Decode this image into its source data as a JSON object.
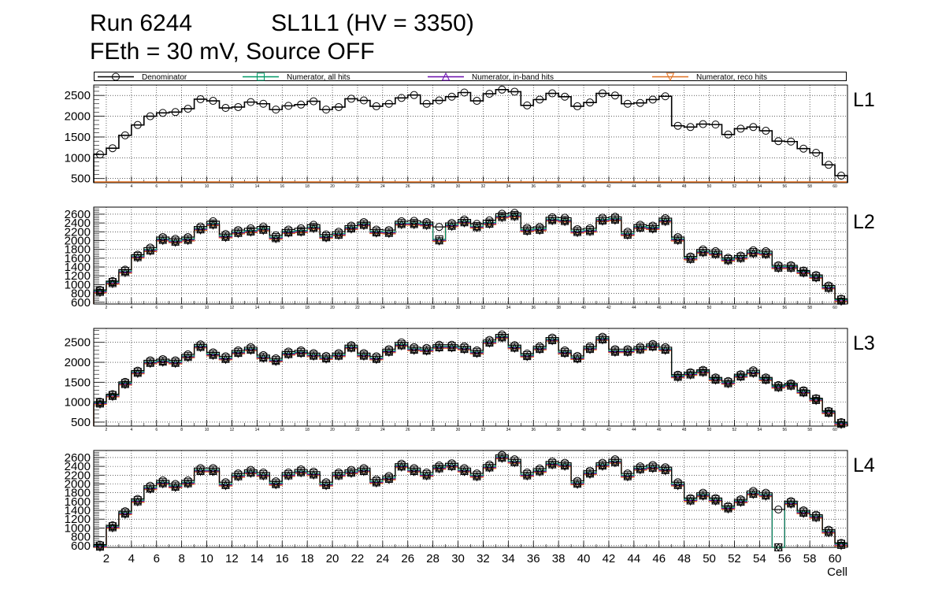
{
  "header": {
    "run": "Run 6244",
    "sl": "SL1L1 (HV = 3350)",
    "line2": "FEth = 30 mV, Source OFF"
  },
  "legend": [
    {
      "name": "Denominator",
      "color": "#000000",
      "marker": "circle"
    },
    {
      "name": "Numerator, all hits",
      "color": "#009966",
      "marker": "square"
    },
    {
      "name": "Numerator, in-band hits",
      "color": "#6a0dad",
      "marker": "triangle-up"
    },
    {
      "name": "Numerator, reco hits",
      "color": "#e07020",
      "marker": "triangle-down"
    }
  ],
  "chart_data": {
    "type": "histogram",
    "xlabel": "Cell",
    "x_range": [
      1,
      61
    ],
    "x_ticks_major": [
      2,
      4,
      6,
      8,
      10,
      12,
      14,
      16,
      18,
      20,
      22,
      24,
      26,
      28,
      30,
      32,
      34,
      36,
      38,
      40,
      42,
      44,
      46,
      48,
      50,
      52,
      54,
      56,
      58,
      60
    ],
    "panels": [
      {
        "label": "L1",
        "ylim": [
          400,
          2750
        ],
        "yticks": [
          500,
          1000,
          1500,
          2000,
          2500
        ],
        "denominator": [
          1080,
          1230,
          1540,
          1790,
          2000,
          2080,
          2100,
          2180,
          2410,
          2370,
          2200,
          2220,
          2340,
          2300,
          2160,
          2250,
          2280,
          2360,
          2160,
          2220,
          2420,
          2380,
          2240,
          2300,
          2440,
          2510,
          2300,
          2380,
          2470,
          2570,
          2370,
          2540,
          2640,
          2590,
          2260,
          2400,
          2550,
          2470,
          2240,
          2330,
          2550,
          2500,
          2300,
          2320,
          2400,
          2480,
          1770,
          1740,
          1810,
          1800,
          1560,
          1700,
          1740,
          1650,
          1400,
          1390,
          1220,
          1120,
          830,
          570
        ],
        "numerators_near_zero": true
      },
      {
        "label": "L2",
        "ylim": [
          560,
          2760
        ],
        "yticks": [
          600,
          800,
          1000,
          1200,
          1400,
          1600,
          1800,
          2000,
          2200,
          2400,
          2600
        ],
        "denominator": [
          880,
          1080,
          1340,
          1680,
          1840,
          2080,
          2040,
          2080,
          2320,
          2440,
          2150,
          2240,
          2280,
          2320,
          2120,
          2250,
          2280,
          2360,
          2140,
          2200,
          2340,
          2420,
          2250,
          2240,
          2440,
          2450,
          2420,
          2310,
          2400,
          2480,
          2380,
          2460,
          2610,
          2630,
          2290,
          2310,
          2530,
          2520,
          2260,
          2280,
          2520,
          2540,
          2200,
          2360,
          2340,
          2510,
          2080,
          1640,
          1800,
          1760,
          1610,
          1660,
          1780,
          1760,
          1440,
          1440,
          1320,
          1220,
          980,
          680
        ],
        "numerator_all": [
          860,
          1060,
          1310,
          1650,
          1800,
          2040,
          2000,
          2040,
          2280,
          2390,
          2110,
          2200,
          2230,
          2270,
          2080,
          2210,
          2230,
          2310,
          2100,
          2160,
          2300,
          2380,
          2210,
          2200,
          2400,
          2400,
          2380,
          2030,
          2360,
          2440,
          2330,
          2410,
          2560,
          2580,
          2250,
          2270,
          2490,
          2470,
          2220,
          2240,
          2480,
          2500,
          2160,
          2320,
          2300,
          2470,
          2040,
          1610,
          1760,
          1720,
          1580,
          1630,
          1740,
          1720,
          1410,
          1410,
          1300,
          1190,
          950,
          660
        ]
      },
      {
        "label": "L3",
        "ylim": [
          400,
          2850
        ],
        "yticks": [
          500,
          1000,
          1500,
          2000,
          2500
        ],
        "denominator": [
          1010,
          1200,
          1510,
          1790,
          2050,
          2080,
          2050,
          2200,
          2450,
          2250,
          2150,
          2300,
          2380,
          2180,
          2100,
          2270,
          2300,
          2230,
          2160,
          2230,
          2430,
          2230,
          2150,
          2330,
          2500,
          2380,
          2360,
          2440,
          2440,
          2400,
          2300,
          2560,
          2700,
          2430,
          2220,
          2400,
          2620,
          2300,
          2160,
          2400,
          2640,
          2330,
          2330,
          2390,
          2460,
          2380,
          1690,
          1750,
          1810,
          1620,
          1530,
          1700,
          1800,
          1620,
          1430,
          1470,
          1300,
          1100,
          780,
          500
        ],
        "numerator_all": [
          990,
          1180,
          1480,
          1760,
          2010,
          2040,
          2010,
          2160,
          2410,
          2210,
          2110,
          2260,
          2340,
          2140,
          2060,
          2230,
          2260,
          2190,
          2120,
          2190,
          2390,
          2190,
          2110,
          2290,
          2450,
          2340,
          2320,
          2400,
          2400,
          2360,
          2260,
          2520,
          2650,
          2390,
          2180,
          2360,
          2580,
          2260,
          2120,
          2360,
          2600,
          2290,
          2290,
          2350,
          2420,
          2340,
          1660,
          1720,
          1780,
          1590,
          1500,
          1670,
          1760,
          1590,
          1400,
          1440,
          1270,
          1080,
          760,
          480
        ]
      },
      {
        "label": "L4",
        "ylim": [
          560,
          2760
        ],
        "yticks": [
          600,
          800,
          1000,
          1200,
          1400,
          1600,
          1800,
          2000,
          2200,
          2400,
          2600
        ],
        "denominator": [
          620,
          1060,
          1380,
          1660,
          1960,
          2080,
          2000,
          2080,
          2360,
          2360,
          2040,
          2240,
          2320,
          2260,
          2060,
          2260,
          2330,
          2280,
          2040,
          2260,
          2320,
          2360,
          2100,
          2180,
          2460,
          2360,
          2260,
          2420,
          2470,
          2360,
          2240,
          2440,
          2660,
          2560,
          2260,
          2350,
          2510,
          2480,
          2070,
          2300,
          2480,
          2560,
          2240,
          2400,
          2430,
          2380,
          2040,
          1680,
          1800,
          1680,
          1500,
          1650,
          1840,
          1800,
          1420,
          1610,
          1400,
          1300,
          960,
          660
        ],
        "numerator_all": [
          600,
          1040,
          1350,
          1630,
          1920,
          2040,
          1960,
          2040,
          2320,
          2320,
          2000,
          2200,
          2280,
          2220,
          2020,
          2220,
          2290,
          2240,
          2000,
          2220,
          2280,
          2320,
          2060,
          2140,
          2420,
          2320,
          2220,
          2380,
          2430,
          2320,
          2200,
          2400,
          2620,
          2520,
          2220,
          2310,
          2470,
          2440,
          2030,
          2260,
          2440,
          2520,
          2200,
          2360,
          2390,
          2340,
          2000,
          1650,
          1760,
          1650,
          1470,
          1620,
          1800,
          1760,
          0,
          1580,
          1370,
          1270,
          930,
          640
        ]
      }
    ]
  }
}
